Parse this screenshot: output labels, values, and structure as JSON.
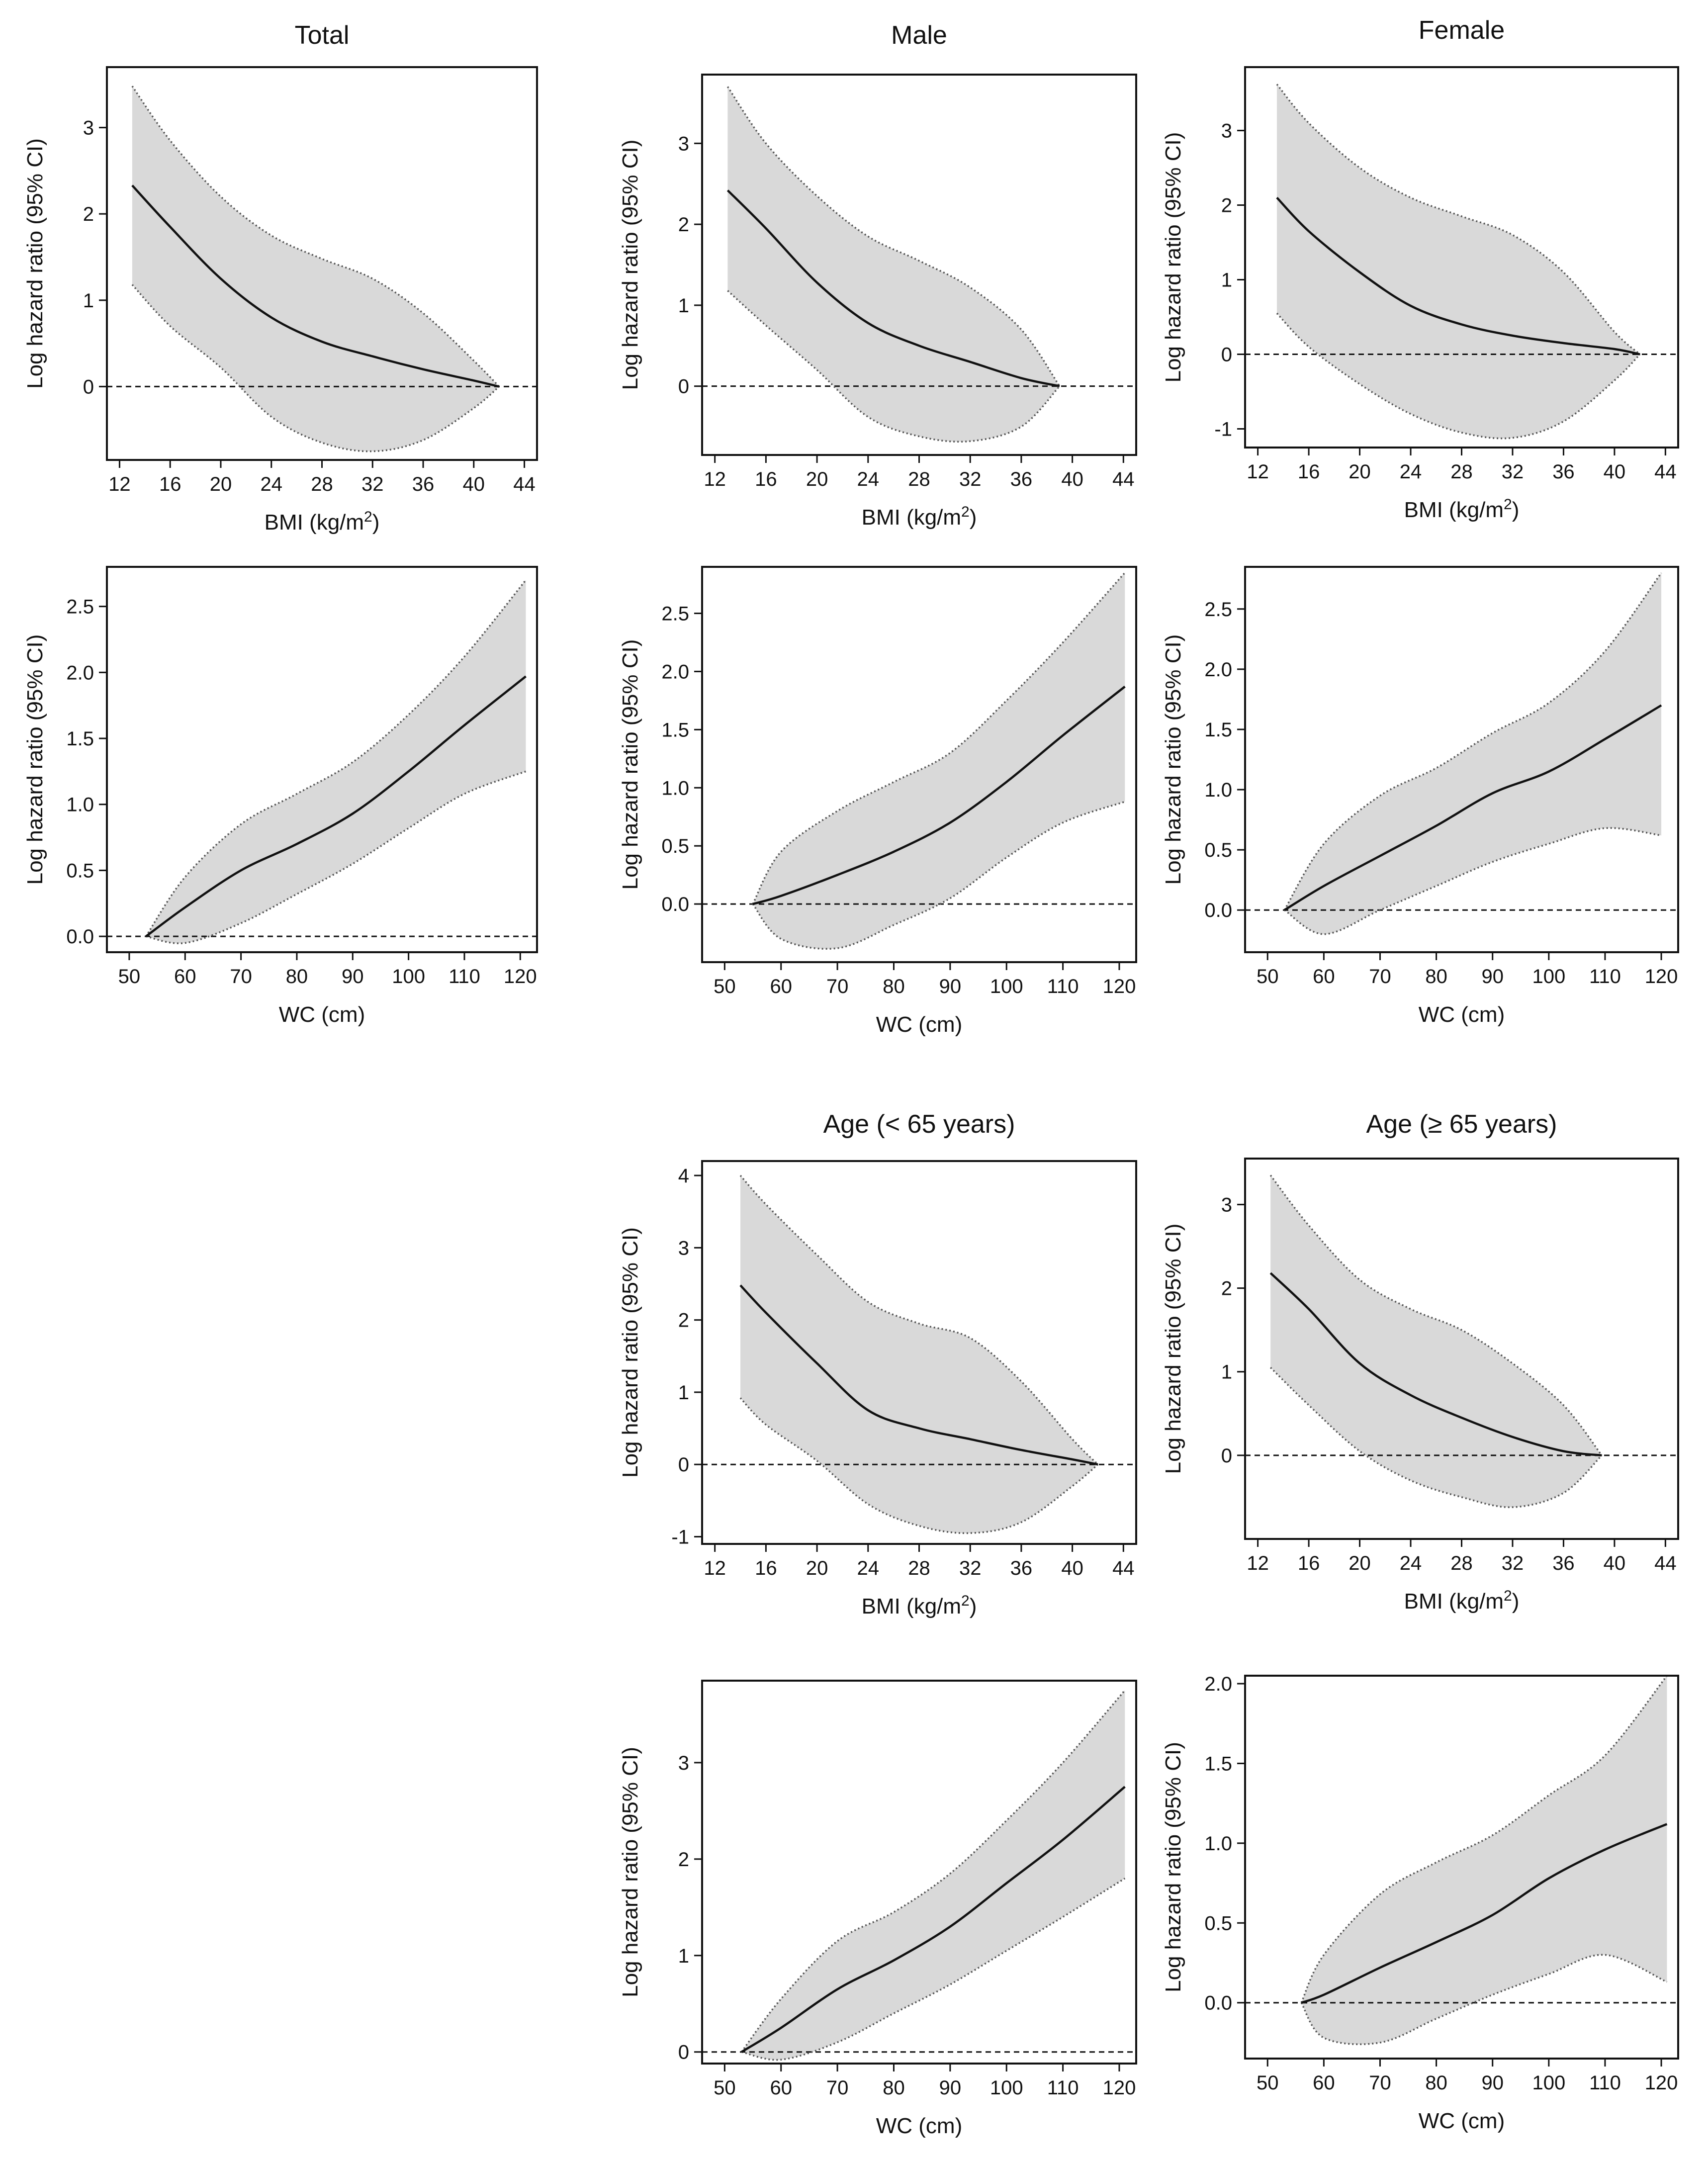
{
  "chart_data": [
    {
      "id": "total-bmi",
      "type": "line",
      "title": "Total",
      "xlabel": "BMI (kg/m",
      "xlabel_sup": "2",
      "xlabel_tail": ")",
      "ylabel": "Log hazard ratio (95% CI)",
      "xlim": [
        11,
        45
      ],
      "ylim": [
        -0.85,
        3.7
      ],
      "xticks": [
        12,
        16,
        20,
        24,
        28,
        32,
        36,
        40,
        44
      ],
      "xtick_labels": [
        "12",
        "16",
        "20",
        "24",
        "28",
        "32",
        "36",
        "40",
        "44"
      ],
      "yticks": [
        0,
        1,
        2,
        3
      ],
      "ytick_labels": [
        "0",
        "1",
        "2",
        "3"
      ],
      "reference_y": 0,
      "series": [
        {
          "role": "estimate",
          "x": [
            13,
            16,
            20,
            24,
            28,
            32,
            36,
            40,
            42
          ],
          "y": [
            2.33,
            1.85,
            1.25,
            0.8,
            0.52,
            0.35,
            0.2,
            0.07,
            0
          ]
        },
        {
          "role": "upper",
          "x": [
            13,
            16,
            20,
            24,
            28,
            32,
            36,
            40,
            42
          ],
          "y": [
            3.48,
            2.85,
            2.2,
            1.75,
            1.48,
            1.25,
            0.85,
            0.3,
            0
          ]
        },
        {
          "role": "lower",
          "x": [
            13,
            16,
            20,
            24,
            28,
            32,
            36,
            40,
            42
          ],
          "y": [
            1.18,
            0.7,
            0.22,
            -0.35,
            -0.65,
            -0.75,
            -0.62,
            -0.25,
            0
          ]
        }
      ]
    },
    {
      "id": "male-bmi",
      "type": "line",
      "title": "Male",
      "xlabel": "BMI (kg/m",
      "xlabel_sup": "2",
      "xlabel_tail": ")",
      "ylabel": "Log hazard ratio (95% CI)",
      "xlim": [
        11,
        45
      ],
      "ylim": [
        -0.85,
        3.85
      ],
      "xticks": [
        12,
        16,
        20,
        24,
        28,
        32,
        36,
        40,
        44
      ],
      "xtick_labels": [
        "12",
        "16",
        "20",
        "24",
        "28",
        "32",
        "36",
        "40",
        "44"
      ],
      "yticks": [
        0,
        1,
        2,
        3
      ],
      "ytick_labels": [
        "0",
        "1",
        "2",
        "3"
      ],
      "reference_y": 0,
      "series": [
        {
          "role": "estimate",
          "x": [
            13,
            16,
            20,
            24,
            28,
            32,
            36,
            39
          ],
          "y": [
            2.42,
            1.95,
            1.28,
            0.78,
            0.5,
            0.3,
            0.1,
            0
          ]
        },
        {
          "role": "upper",
          "x": [
            13,
            16,
            20,
            24,
            28,
            32,
            36,
            39
          ],
          "y": [
            3.7,
            3.0,
            2.35,
            1.85,
            1.55,
            1.22,
            0.7,
            0
          ]
        },
        {
          "role": "lower",
          "x": [
            13,
            16,
            20,
            24,
            28,
            32,
            36,
            39
          ],
          "y": [
            1.18,
            0.75,
            0.2,
            -0.38,
            -0.62,
            -0.68,
            -0.5,
            0
          ]
        }
      ]
    },
    {
      "id": "female-bmi",
      "type": "line",
      "title": "Female",
      "xlabel": "BMI (kg/m",
      "xlabel_sup": "2",
      "xlabel_tail": ")",
      "ylabel": "Log hazard ratio (95% CI)",
      "xlim": [
        11,
        45
      ],
      "ylim": [
        -1.25,
        3.85
      ],
      "xticks": [
        12,
        16,
        20,
        24,
        28,
        32,
        36,
        40,
        44
      ],
      "xtick_labels": [
        "12",
        "16",
        "20",
        "24",
        "28",
        "32",
        "36",
        "40",
        "44"
      ],
      "yticks": [
        -1,
        0,
        1,
        2,
        3
      ],
      "ytick_labels": [
        "-1",
        "0",
        "1",
        "2",
        "3"
      ],
      "reference_y": 0,
      "series": [
        {
          "role": "estimate",
          "x": [
            13.5,
            16,
            20,
            24,
            28,
            32,
            36,
            40,
            42
          ],
          "y": [
            2.1,
            1.65,
            1.1,
            0.65,
            0.4,
            0.25,
            0.15,
            0.07,
            0
          ]
        },
        {
          "role": "upper",
          "x": [
            13.5,
            16,
            20,
            24,
            28,
            32,
            36,
            40,
            42
          ],
          "y": [
            3.62,
            3.1,
            2.5,
            2.1,
            1.85,
            1.6,
            1.1,
            0.3,
            0
          ]
        },
        {
          "role": "lower",
          "x": [
            13.5,
            16,
            20,
            24,
            28,
            32,
            36,
            40,
            42
          ],
          "y": [
            0.55,
            0.1,
            -0.4,
            -0.8,
            -1.05,
            -1.12,
            -0.9,
            -0.35,
            0
          ]
        }
      ]
    },
    {
      "id": "total-wc",
      "type": "line",
      "title": "",
      "xlabel": "WC (cm)",
      "ylabel": "Log hazard ratio (95% CI)",
      "xlim": [
        46,
        123
      ],
      "ylim": [
        -0.12,
        2.8
      ],
      "xticks": [
        50,
        60,
        70,
        80,
        90,
        100,
        110,
        120
      ],
      "xtick_labels": [
        "50",
        "60",
        "70",
        "80",
        "90",
        "100",
        "110",
        "120"
      ],
      "yticks": [
        0,
        0.5,
        1,
        1.5,
        2,
        2.5
      ],
      "ytick_labels": [
        "0.0",
        "0.5",
        "1.0",
        "1.5",
        "2.0",
        "2.5"
      ],
      "reference_y": 0,
      "series": [
        {
          "role": "estimate",
          "x": [
            53,
            60,
            70,
            80,
            90,
            100,
            110,
            121
          ],
          "y": [
            0,
            0.22,
            0.5,
            0.7,
            0.93,
            1.25,
            1.6,
            1.97
          ]
        },
        {
          "role": "upper",
          "x": [
            53,
            60,
            70,
            80,
            90,
            100,
            110,
            121
          ],
          "y": [
            0,
            0.45,
            0.85,
            1.08,
            1.32,
            1.68,
            2.12,
            2.7
          ]
        },
        {
          "role": "lower",
          "x": [
            53,
            60,
            70,
            80,
            90,
            100,
            110,
            121
          ],
          "y": [
            0,
            -0.05,
            0.1,
            0.32,
            0.55,
            0.82,
            1.08,
            1.25
          ]
        }
      ]
    },
    {
      "id": "male-wc",
      "type": "line",
      "title": "",
      "xlabel": "WC (cm)",
      "ylabel": "Log hazard ratio (95% CI)",
      "xlim": [
        46,
        123
      ],
      "ylim": [
        -0.5,
        2.9
      ],
      "xticks": [
        50,
        60,
        70,
        80,
        90,
        100,
        110,
        120
      ],
      "xtick_labels": [
        "50",
        "60",
        "70",
        "80",
        "90",
        "100",
        "110",
        "120"
      ],
      "yticks": [
        0,
        0.5,
        1,
        1.5,
        2,
        2.5
      ],
      "ytick_labels": [
        "0.0",
        "0.5",
        "1.0",
        "1.5",
        "2.0",
        "2.5"
      ],
      "reference_y": 0,
      "series": [
        {
          "role": "estimate",
          "x": [
            55,
            60,
            70,
            80,
            90,
            100,
            110,
            121
          ],
          "y": [
            0,
            0.07,
            0.25,
            0.45,
            0.7,
            1.05,
            1.45,
            1.87
          ]
        },
        {
          "role": "upper",
          "x": [
            55,
            60,
            70,
            80,
            90,
            100,
            110,
            121
          ],
          "y": [
            0,
            0.45,
            0.8,
            1.05,
            1.3,
            1.75,
            2.25,
            2.85
          ]
        },
        {
          "role": "lower",
          "x": [
            55,
            60,
            70,
            80,
            90,
            100,
            110,
            121
          ],
          "y": [
            0,
            -0.3,
            -0.38,
            -0.18,
            0.05,
            0.4,
            0.7,
            0.88
          ]
        }
      ]
    },
    {
      "id": "female-wc",
      "type": "line",
      "title": "",
      "xlabel": "WC (cm)",
      "ylabel": "Log hazard ratio (95% CI)",
      "xlim": [
        46,
        123
      ],
      "ylim": [
        -0.35,
        2.85
      ],
      "xticks": [
        50,
        60,
        70,
        80,
        90,
        100,
        110,
        120
      ],
      "xtick_labels": [
        "50",
        "60",
        "70",
        "80",
        "90",
        "100",
        "110",
        "120"
      ],
      "yticks": [
        0,
        0.5,
        1,
        1.5,
        2,
        2.5
      ],
      "ytick_labels": [
        "0.0",
        "0.5",
        "1.0",
        "1.5",
        "2.0",
        "2.5"
      ],
      "reference_y": 0,
      "series": [
        {
          "role": "estimate",
          "x": [
            53,
            60,
            70,
            80,
            90,
            100,
            110,
            120
          ],
          "y": [
            0,
            0.2,
            0.45,
            0.7,
            0.97,
            1.15,
            1.42,
            1.7
          ]
        },
        {
          "role": "upper",
          "x": [
            53,
            60,
            70,
            80,
            90,
            100,
            110,
            120
          ],
          "y": [
            0,
            0.55,
            0.95,
            1.18,
            1.47,
            1.72,
            2.15,
            2.8
          ]
        },
        {
          "role": "lower",
          "x": [
            53,
            60,
            70,
            80,
            90,
            100,
            110,
            120
          ],
          "y": [
            0,
            -0.2,
            0,
            0.2,
            0.4,
            0.55,
            0.68,
            0.62
          ]
        }
      ]
    },
    {
      "id": "under65-bmi",
      "type": "line",
      "title": "Age (< 65 years)",
      "xlabel": "BMI (kg/m",
      "xlabel_sup": "2",
      "xlabel_tail": ")",
      "ylabel": "Log hazard ratio (95% CI)",
      "xlim": [
        11,
        45
      ],
      "ylim": [
        -1.1,
        4.2
      ],
      "xticks": [
        12,
        16,
        20,
        24,
        28,
        32,
        36,
        40,
        44
      ],
      "xtick_labels": [
        "12",
        "16",
        "20",
        "24",
        "28",
        "32",
        "36",
        "40",
        "44"
      ],
      "yticks": [
        -1,
        0,
        1,
        2,
        3,
        4
      ],
      "ytick_labels": [
        "-1",
        "0",
        "1",
        "2",
        "3",
        "4"
      ],
      "reference_y": 0,
      "series": [
        {
          "role": "estimate",
          "x": [
            14,
            16,
            20,
            24,
            28,
            32,
            36,
            40,
            42
          ],
          "y": [
            2.48,
            2.1,
            1.4,
            0.75,
            0.5,
            0.35,
            0.2,
            0.07,
            0
          ]
        },
        {
          "role": "upper",
          "x": [
            14,
            16,
            20,
            24,
            28,
            32,
            36,
            40,
            42
          ],
          "y": [
            4.0,
            3.6,
            2.9,
            2.25,
            1.95,
            1.75,
            1.15,
            0.35,
            0
          ]
        },
        {
          "role": "lower",
          "x": [
            14,
            16,
            20,
            24,
            28,
            32,
            36,
            40,
            42
          ],
          "y": [
            0.92,
            0.55,
            0.05,
            -0.55,
            -0.85,
            -0.95,
            -0.8,
            -0.3,
            0
          ]
        }
      ]
    },
    {
      "id": "over65-bmi",
      "type": "line",
      "title": "Age (≥ 65 years)",
      "xlabel": "BMI (kg/m",
      "xlabel_sup": "2",
      "xlabel_tail": ")",
      "ylabel": "Log hazard ratio (95% CI)",
      "xlim": [
        11,
        45
      ],
      "ylim": [
        -1.0,
        3.55
      ],
      "xticks": [
        12,
        16,
        20,
        24,
        28,
        32,
        36,
        40,
        44
      ],
      "xtick_labels": [
        "12",
        "16",
        "20",
        "24",
        "28",
        "32",
        "36",
        "40",
        "44"
      ],
      "yticks": [
        0,
        1,
        2,
        3
      ],
      "ytick_labels": [
        "0",
        "1",
        "2",
        "3"
      ],
      "reference_y": 0,
      "series": [
        {
          "role": "estimate",
          "x": [
            13,
            16,
            20,
            24,
            28,
            32,
            36,
            39
          ],
          "y": [
            2.18,
            1.75,
            1.1,
            0.72,
            0.45,
            0.22,
            0.05,
            0
          ]
        },
        {
          "role": "upper",
          "x": [
            13,
            16,
            20,
            24,
            28,
            32,
            36,
            39
          ],
          "y": [
            3.35,
            2.75,
            2.1,
            1.75,
            1.5,
            1.1,
            0.6,
            0
          ]
        },
        {
          "role": "lower",
          "x": [
            13,
            16,
            20,
            24,
            28,
            32,
            36,
            39
          ],
          "y": [
            1.05,
            0.6,
            0.05,
            -0.3,
            -0.5,
            -0.62,
            -0.45,
            0
          ]
        }
      ]
    },
    {
      "id": "under65-wc",
      "type": "line",
      "title": "",
      "xlabel": "WC (cm)",
      "ylabel": "Log hazard ratio (95% CI)",
      "xlim": [
        46,
        123
      ],
      "ylim": [
        -0.12,
        3.85
      ],
      "xticks": [
        50,
        60,
        70,
        80,
        90,
        100,
        110,
        120
      ],
      "xtick_labels": [
        "50",
        "60",
        "70",
        "80",
        "90",
        "100",
        "110",
        "120"
      ],
      "yticks": [
        0,
        1,
        2,
        3
      ],
      "ytick_labels": [
        "0",
        "1",
        "2",
        "3"
      ],
      "reference_y": 0,
      "series": [
        {
          "role": "estimate",
          "x": [
            53,
            60,
            70,
            80,
            90,
            100,
            110,
            121
          ],
          "y": [
            0,
            0.25,
            0.65,
            0.95,
            1.3,
            1.75,
            2.2,
            2.75
          ]
        },
        {
          "role": "upper",
          "x": [
            53,
            60,
            70,
            80,
            90,
            100,
            110,
            121
          ],
          "y": [
            0,
            0.55,
            1.15,
            1.45,
            1.85,
            2.4,
            3.0,
            3.75
          ]
        },
        {
          "role": "lower",
          "x": [
            53,
            60,
            70,
            80,
            90,
            100,
            110,
            121
          ],
          "y": [
            0,
            -0.08,
            0.1,
            0.4,
            0.7,
            1.05,
            1.4,
            1.8
          ]
        }
      ]
    },
    {
      "id": "over65-wc",
      "type": "line",
      "title": "",
      "xlabel": "WC (cm)",
      "ylabel": "Log hazard ratio (95% CI)",
      "xlim": [
        46,
        123
      ],
      "ylim": [
        -0.35,
        2.05
      ],
      "xticks": [
        50,
        60,
        70,
        80,
        90,
        100,
        110,
        120
      ],
      "xtick_labels": [
        "50",
        "60",
        "70",
        "80",
        "90",
        "100",
        "110",
        "120"
      ],
      "yticks": [
        0,
        0.5,
        1,
        1.5,
        2
      ],
      "ytick_labels": [
        "0.0",
        "0.5",
        "1.0",
        "1.5",
        "2.0"
      ],
      "reference_y": 0,
      "series": [
        {
          "role": "estimate",
          "x": [
            56,
            60,
            70,
            80,
            90,
            100,
            110,
            121
          ],
          "y": [
            0,
            0.05,
            0.22,
            0.38,
            0.55,
            0.78,
            0.96,
            1.12
          ]
        },
        {
          "role": "upper",
          "x": [
            56,
            60,
            70,
            80,
            90,
            100,
            110,
            121
          ],
          "y": [
            0,
            0.3,
            0.68,
            0.88,
            1.05,
            1.3,
            1.55,
            2.05
          ]
        },
        {
          "role": "lower",
          "x": [
            56,
            60,
            70,
            80,
            90,
            100,
            110,
            121
          ],
          "y": [
            0,
            -0.22,
            -0.25,
            -0.1,
            0.05,
            0.18,
            0.3,
            0.13
          ]
        }
      ]
    }
  ]
}
